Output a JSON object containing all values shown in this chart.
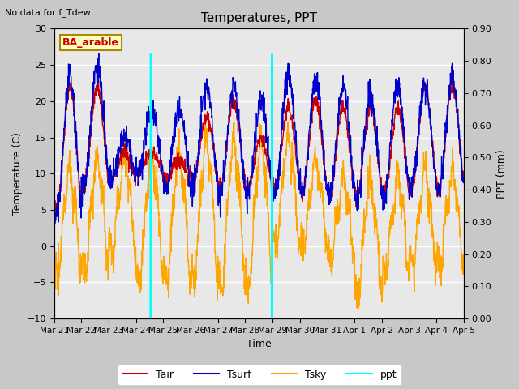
{
  "title": "Temperatures, PPT",
  "subtitle": "No data for f_Tdew",
  "station_label": "BA_arable",
  "xlabel": "Time",
  "ylabel_left": "Temperature (C)",
  "ylabel_right": "PPT (mm)",
  "ylim_left": [
    -10,
    30
  ],
  "ylim_right": [
    0.0,
    0.9
  ],
  "yticks_left": [
    -10,
    -5,
    0,
    5,
    10,
    15,
    20,
    25,
    30
  ],
  "yticks_right": [
    0.0,
    0.1,
    0.2,
    0.3,
    0.4,
    0.5,
    0.6,
    0.7,
    0.8,
    0.9
  ],
  "xticklabels": [
    "Mar 21",
    "Mar 22",
    "Mar 23",
    "Mar 24",
    "Mar 25",
    "Mar 26",
    "Mar 27",
    "Mar 28",
    "Mar 29",
    "Mar 30",
    "Mar 31",
    "Apr 1",
    "Apr 2",
    "Apr 3",
    "Apr 4",
    "Apr 5"
  ],
  "color_tair": "#cc0000",
  "color_tsurf": "#0000cc",
  "color_tsky": "#ffa500",
  "color_ppt": "#00ffff",
  "plot_bg": "#e8e8e8",
  "lw_temp": 1.0,
  "lw_ppt": 1.5,
  "figsize": [
    6.4,
    4.8
  ],
  "dpi": 100
}
